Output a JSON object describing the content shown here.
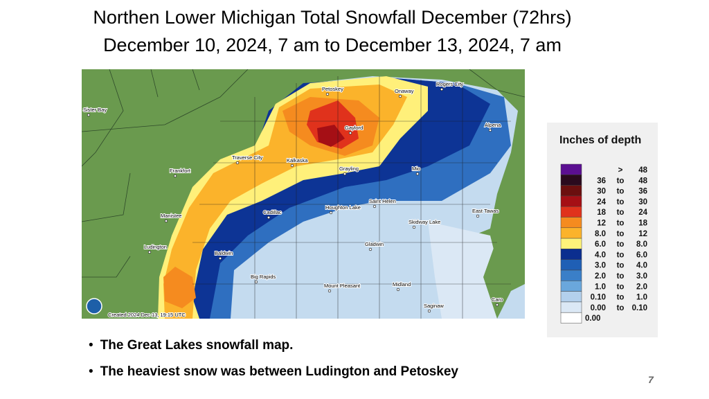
{
  "title": [
    "Northen Lower Michigan Total Snowfall December (72hrs)",
    "December 10, 2024, 7 am to December 13, 2024,  7 am"
  ],
  "map": {
    "cities": [
      "Petoskey",
      "Onaway",
      "Rogers City",
      "Sister Bay",
      "Alpena",
      "Gaylord",
      "Traverse City",
      "Kalkaska",
      "Grayling",
      "Mio",
      "Frankfort",
      "Houghton Lake",
      "Saint Helen",
      "East Tawas",
      "Cadillac",
      "Manistee",
      "Skidway Lake",
      "Ludington",
      "Gladwin",
      "Baldwin",
      "Big Rapids",
      "Midland",
      "Mount Pleasant",
      "Caro",
      "Saginaw"
    ],
    "credit": "Created 2024 Dec 13, 19:15 UTC"
  },
  "legend": {
    "title": "Inches of depth",
    "rows": [
      [
        ">",
        "48"
      ],
      [
        "36",
        "to",
        "48"
      ],
      [
        "30",
        "to",
        "36"
      ],
      [
        "24",
        "to",
        "30"
      ],
      [
        "18",
        "to",
        "24"
      ],
      [
        "12",
        "to",
        "18"
      ],
      [
        "8.0",
        "to",
        "12"
      ],
      [
        "6.0",
        "to",
        "8.0"
      ],
      [
        "4.0",
        "to",
        "6.0"
      ],
      [
        "3.0",
        "to",
        "4.0"
      ],
      [
        "2.0",
        "to",
        "3.0"
      ],
      [
        "1.0",
        "to",
        "2.0"
      ],
      [
        "0.10",
        "to",
        "1.0"
      ],
      [
        "0.00",
        "to",
        "0.10"
      ],
      [
        "0.00"
      ]
    ],
    "colors": [
      "#5b0f91",
      "#2a0a1e",
      "#6b0f0f",
      "#a50f15",
      "#e0321c",
      "#f58b1f",
      "#fbb32b",
      "#fff37a",
      "#0b2e8f",
      "#1f5fb5",
      "#3a7fc8",
      "#6aa7dc",
      "#b3d0ec",
      "#dbe8f5",
      "#ffffff"
    ]
  },
  "bullets": [
    "The Great Lakes snowfall map.",
    "The heaviest snow was between  Ludington and Petoskey"
  ],
  "page_number": "7"
}
